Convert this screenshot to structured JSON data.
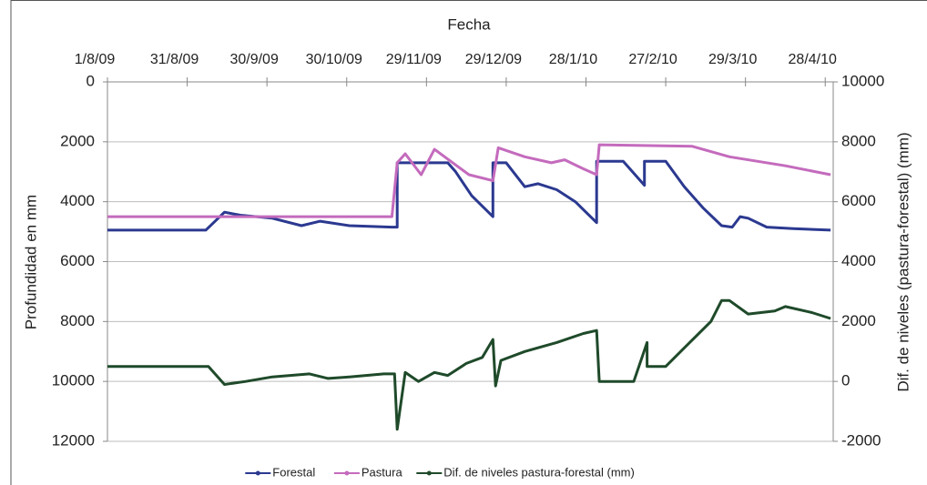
{
  "chart_data": {
    "type": "line",
    "title": "Fecha",
    "y_label": "Profundidad en mm",
    "y2_label": "Dif. de niveles (pastura-forestal) (mm)",
    "xlim": [
      "1/8/09",
      "1/5/10"
    ],
    "xticks": [
      "1/8/09",
      "31/8/09",
      "30/9/09",
      "30/10/09",
      "29/11/09",
      "29/12/09",
      "28/1/10",
      "27/2/10",
      "29/3/10",
      "28/4/10"
    ],
    "ylim": [
      0,
      12000
    ],
    "yticks": [
      0,
      2000,
      4000,
      6000,
      8000,
      10000,
      12000
    ],
    "y_inverted": true,
    "y2lim": [
      -2000,
      10000
    ],
    "y2ticks": [
      -2000,
      0,
      2000,
      4000,
      6000,
      8000,
      10000
    ],
    "grid": true,
    "legend": "bottom",
    "series": [
      {
        "name": "Forestal",
        "color": "#2b3990",
        "x": [
          "1/8/09",
          "7/9/09",
          "14/9/09",
          "20/9/09",
          "2/10/09",
          "13/10/09",
          "20/10/09",
          "31/10/09",
          "16/11/09",
          "18/11/09",
          "18/11/09",
          "7/12/09",
          "10/12/09",
          "16/12/09",
          "24/12/09",
          "24/12/09",
          "29/12/09",
          "5/1/10",
          "10/1/10",
          "17/1/10",
          "24/1/10",
          "1/2/10",
          "1/2/10",
          "11/2/10",
          "19/2/10",
          "19/2/10",
          "27/2/10",
          "6/3/10",
          "13/3/10",
          "20/3/10",
          "24/3/10",
          "27/3/10",
          "30/3/10",
          "6/4/10",
          "16/4/10",
          "30/4/10"
        ],
        "values": [
          4950,
          4950,
          4350,
          4450,
          4550,
          4800,
          4650,
          4800,
          4850,
          4850,
          2700,
          2700,
          3000,
          3800,
          4500,
          2700,
          2700,
          3500,
          3400,
          3600,
          4000,
          4700,
          2650,
          2650,
          3450,
          2650,
          2650,
          3500,
          4200,
          4800,
          4850,
          4500,
          4550,
          4850,
          4900,
          4950
        ]
      },
      {
        "name": "Pastura",
        "color": "#c46bbd",
        "x": [
          "1/8/09",
          "16/11/09",
          "18/11/09",
          "21/11/09",
          "27/11/09",
          "2/12/09",
          "15/12/09",
          "24/12/09",
          "26/12/09",
          "5/1/10",
          "15/1/10",
          "20/1/10",
          "27/1/10",
          "1/2/10",
          "2/2/10",
          "9/3/10",
          "23/3/10",
          "13/4/10",
          "30/4/10"
        ],
        "values": [
          4500,
          4500,
          2700,
          2400,
          3100,
          2250,
          3100,
          3300,
          2200,
          2500,
          2700,
          2600,
          2900,
          3100,
          2100,
          2150,
          2500,
          2800,
          3100
        ]
      },
      {
        "name": "Dif. de niveles pastura-forestal (mm)",
        "color": "#1f4a2a",
        "axis": "y2",
        "x": [
          "1/8/09",
          "8/9/09",
          "14/9/09",
          "22/9/09",
          "2/10/09",
          "16/10/09",
          "23/10/09",
          "31/10/09",
          "13/11/09",
          "17/11/09",
          "18/11/09",
          "21/11/09",
          "26/11/09",
          "2/12/09",
          "7/12/09",
          "14/12/09",
          "20/12/09",
          "24/12/09",
          "25/12/09",
          "27/12/09",
          "5/1/10",
          "17/1/10",
          "27/1/10",
          "1/2/10",
          "2/2/10",
          "15/2/10",
          "20/2/10",
          "20/2/10",
          "27/2/10",
          "8/3/10",
          "16/3/10",
          "20/3/10",
          "23/3/10",
          "30/3/10",
          "9/4/10",
          "13/4/10",
          "23/4/10",
          "30/4/10"
        ],
        "values": [
          500,
          500,
          -100,
          0,
          150,
          250,
          100,
          150,
          250,
          250,
          -1600,
          300,
          0,
          300,
          200,
          600,
          800,
          1400,
          -150,
          700,
          1000,
          1300,
          1600,
          1700,
          0,
          0,
          1300,
          500,
          500,
          1300,
          2000,
          2700,
          2700,
          2250,
          2350,
          2500,
          2300,
          2100
        ]
      }
    ]
  }
}
